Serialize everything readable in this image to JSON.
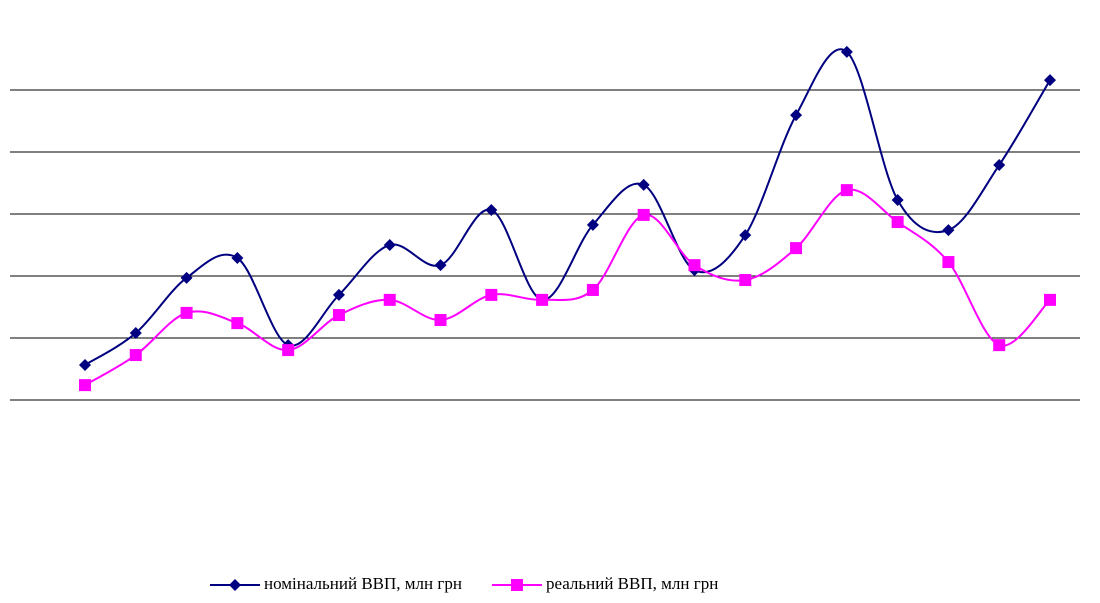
{
  "chart_data": {
    "type": "line",
    "categories": [
      null,
      null,
      null,
      null,
      null,
      null,
      null,
      null,
      null,
      null,
      null,
      null,
      null,
      null,
      null,
      null,
      null,
      null,
      null,
      null
    ],
    "series": [
      {
        "name": "номінальний ВВП, млн грн",
        "color": "#000080",
        "marker": "diamond",
        "values": [
          713000,
          816000,
          994000,
          1058000,
          777000,
          939000,
          1100000,
          1035000,
          1213000,
          923000,
          1165000,
          1294000,
          1019000,
          1132000,
          1519000,
          1723000,
          1245000,
          1148000,
          1358000,
          1632000
        ]
      },
      {
        "name": "реальний ВВП, млн грн",
        "color": "#ff00ff",
        "marker": "square",
        "values": [
          648000,
          745000,
          881000,
          848000,
          761000,
          874000,
          923000,
          858000,
          939000,
          923000,
          955000,
          1197000,
          1035000,
          987000,
          1090000,
          1277000,
          1174000,
          1045000,
          777000,
          923000
        ]
      }
    ],
    "ylim": [
      600000,
      1800000
    ],
    "yticks": [
      600000,
      800000,
      1000000,
      1200000,
      1400000,
      1600000
    ],
    "grid": true,
    "smooth": true,
    "legend": "bottom"
  }
}
